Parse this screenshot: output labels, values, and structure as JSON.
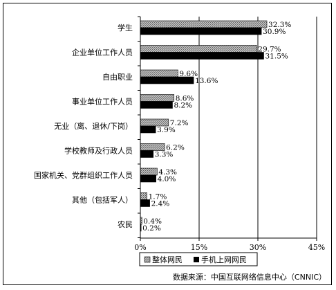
{
  "chart_data": {
    "type": "bar",
    "orientation": "horizontal",
    "categories": [
      "学生",
      "企业单位工作人员",
      "自由职业",
      "事业单位工作人员",
      "无业（离、退休/下岗）",
      "学校教师及行政人员",
      "国家机关、党群组织工作人员",
      "其他（包括军人）",
      "农民"
    ],
    "series": [
      {
        "name": "整体网民",
        "values": [
          32.3,
          29.7,
          9.6,
          8.6,
          7.2,
          6.2,
          4.3,
          1.7,
          0.4
        ],
        "labels": [
          "32.3%",
          "29.7%",
          "9.6%",
          "8.6%",
          "7.2%",
          "6.2%",
          "4.3%",
          "1.7%",
          "0.4%"
        ],
        "color": "#c8c8c8",
        "pattern": "hatched"
      },
      {
        "name": "手机上网网民",
        "values": [
          30.9,
          31.5,
          13.6,
          8.2,
          3.9,
          3.3,
          4.0,
          2.4,
          0.2
        ],
        "labels": [
          "30.9%",
          "31.5%",
          "13.6%",
          "8.2%",
          "3.9%",
          "3.3%",
          "4.0%",
          "2.4%",
          "0.2%"
        ],
        "color": "#000000",
        "pattern": "solid"
      }
    ],
    "xlim": [
      0,
      45
    ],
    "xticks": [
      "0%",
      "15%",
      "30%",
      "45%"
    ],
    "xtick_values": [
      0,
      15,
      30,
      45
    ],
    "grid": "vertical",
    "legend_position": "bottom",
    "source": "数据来源：中国互联网络信息中心（CNNIC）"
  }
}
